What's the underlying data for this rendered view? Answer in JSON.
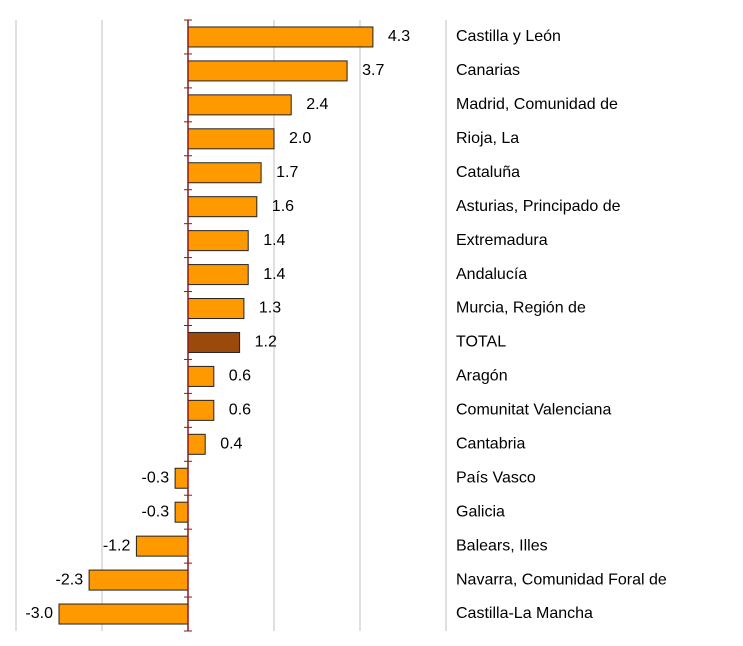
{
  "chart_data": {
    "type": "hbar",
    "categories": [
      "Castilla y León",
      "Canarias",
      "Madrid, Comunidad de",
      "Rioja, La",
      "Cataluña",
      "Asturias, Principado de",
      "Extremadura",
      "Andalucía",
      "Murcia, Región de",
      "TOTAL",
      "Aragón",
      "Comunitat Valenciana",
      "Cantabria",
      "País Vasco",
      "Galicia",
      "Balears, Illes",
      "Navarra, Comunidad Foral de",
      "Castilla-La Mancha"
    ],
    "values": [
      4.3,
      3.7,
      2.4,
      2.0,
      1.7,
      1.6,
      1.4,
      1.4,
      1.3,
      1.2,
      0.6,
      0.6,
      0.4,
      -0.3,
      -0.3,
      -1.2,
      -2.3,
      -3.0
    ],
    "value_labels": [
      "4.3",
      "3.7",
      "2.4",
      "2.0",
      "1.7",
      "1.6",
      "1.4",
      "1.4",
      "1.3",
      "1.2",
      "0.6",
      "0.6",
      "0.4",
      "-0.3",
      "-0.3",
      "-1.2",
      "-2.3",
      "-3.0"
    ],
    "colors": [
      "#ff9900",
      "#ff9900",
      "#ff9900",
      "#ff9900",
      "#ff9900",
      "#ff9900",
      "#ff9900",
      "#ff9900",
      "#ff9900",
      "#9c4a0c",
      "#ff9900",
      "#ff9900",
      "#ff9900",
      "#ff9900",
      "#ff9900",
      "#ff9900",
      "#ff9900",
      "#ff9900"
    ],
    "xlim": [
      -4,
      6
    ],
    "xticks": [
      -4,
      -2,
      0,
      2,
      4,
      6
    ],
    "grid": true
  }
}
